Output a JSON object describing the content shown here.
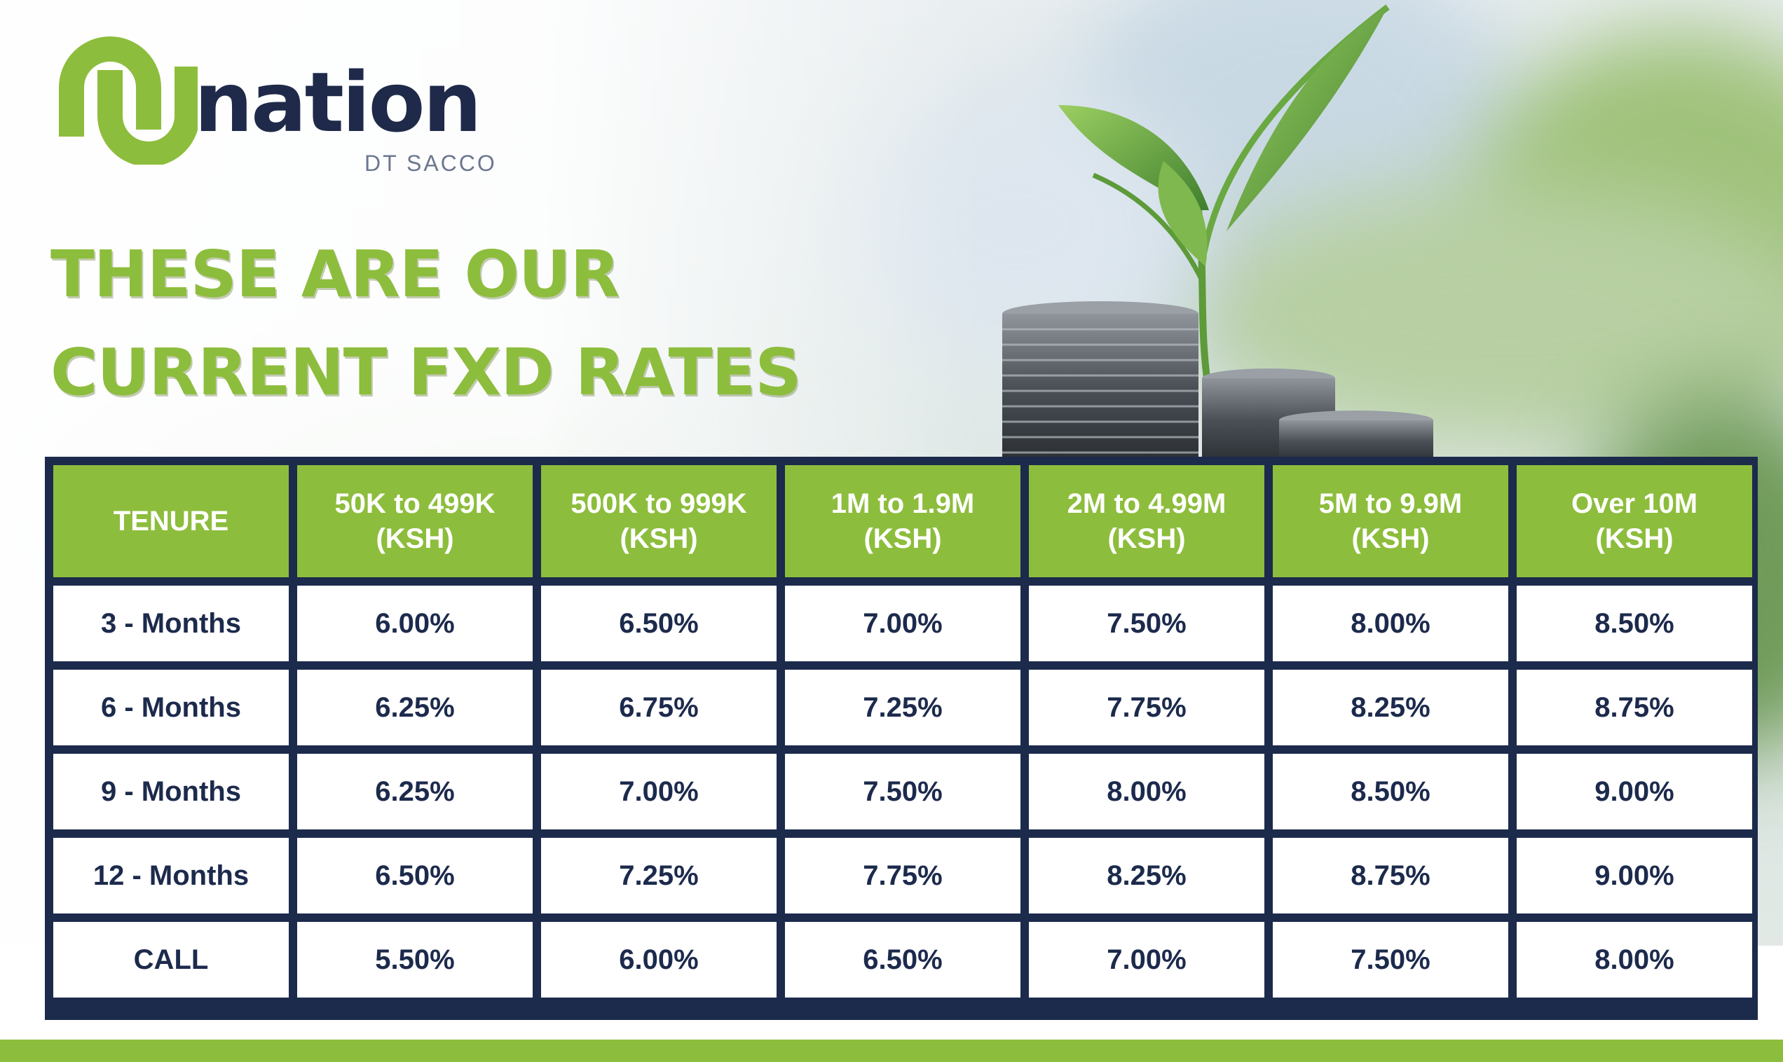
{
  "brand": {
    "name": "nation",
    "subtitle": "DT SACCO",
    "colors": {
      "green": "#8dbd3c",
      "navy": "#1c2a4c"
    }
  },
  "headline": {
    "line1": "THESE ARE OUR",
    "line2": "CURRENT FXD RATES"
  },
  "table": {
    "tenure_header": "TENURE",
    "columns": [
      {
        "range": "50K to 499K",
        "unit": "(KSH)"
      },
      {
        "range": "500K to 999K",
        "unit": "(KSH)"
      },
      {
        "range": "1M to 1.9M",
        "unit": "(KSH)"
      },
      {
        "range": "2M to 4.99M",
        "unit": "(KSH)"
      },
      {
        "range": "5M to 9.9M",
        "unit": "(KSH)"
      },
      {
        "range": "Over 10M",
        "unit": "(KSH)"
      }
    ],
    "rows": [
      {
        "tenure": "3 - Months",
        "rates": [
          "6.00%",
          "6.50%",
          "7.00%",
          "7.50%",
          "8.00%",
          "8.50%"
        ]
      },
      {
        "tenure": "6 - Months",
        "rates": [
          "6.25%",
          "6.75%",
          "7.25%",
          "7.75%",
          "8.25%",
          "8.75%"
        ]
      },
      {
        "tenure": "9 - Months",
        "rates": [
          "6.25%",
          "7.00%",
          "7.50%",
          "8.00%",
          "8.50%",
          "9.00%"
        ]
      },
      {
        "tenure": "12 - Months",
        "rates": [
          "6.50%",
          "7.25%",
          "7.75%",
          "8.25%",
          "8.75%",
          "9.00%"
        ]
      },
      {
        "tenure": "CALL",
        "rates": [
          "5.50%",
          "6.00%",
          "6.50%",
          "7.00%",
          "7.50%",
          "8.00%"
        ]
      }
    ]
  },
  "decor": {
    "illustration": "coin-stacks-with-plant-sprout"
  }
}
